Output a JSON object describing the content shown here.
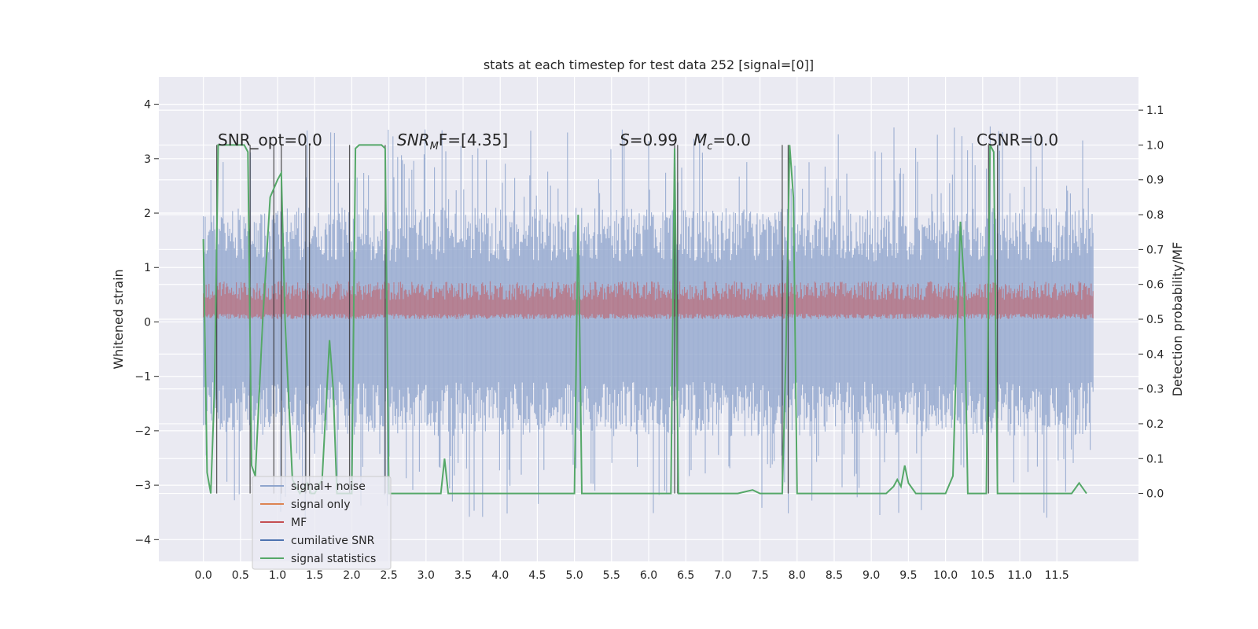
{
  "chart_data": {
    "type": "line",
    "title": "stats at each timestep for test data 252 [signal=[0]]",
    "ylabel": "Whitened strain",
    "y2label": "Detection probability/MF",
    "xlim": [
      -0.6,
      12.6
    ],
    "ylim": [
      -4.4,
      4.5
    ],
    "y2lim": [
      -0.195,
      1.195
    ],
    "xticks": [
      "0.0",
      "0.5",
      "1.0",
      "1.5",
      "2.0",
      "2.5",
      "3.0",
      "3.5",
      "4.0",
      "4.5",
      "5.0",
      "5.5",
      "6.0",
      "6.5",
      "7.0",
      "7.5",
      "8.0",
      "8.5",
      "9.0",
      "9.5",
      "10.0",
      "10.5",
      "11.0",
      "11.5"
    ],
    "yticks": [
      "4",
      "3",
      "2",
      "1",
      "0",
      "−1",
      "−2",
      "−3",
      "−4"
    ],
    "y2ticks": [
      "1.1",
      "1.0",
      "0.9",
      "0.8",
      "0.7",
      "0.6",
      "0.5",
      "0.4",
      "0.3",
      "0.2",
      "0.1",
      "0.0"
    ],
    "grid": true,
    "legend_position": "lower-left",
    "annotations": [
      "SNR_opt=0.0",
      "SNR",
      "M",
      "F=[4.35]",
      "S",
      "=0.99",
      "M",
      "c",
      "=0.0",
      "CSNR=0.0"
    ],
    "series": [
      {
        "name": "signal+ noise",
        "color": "#8fa5cd",
        "description_range": [
          -3.4,
          3.4
        ],
        "x_range": [
          0.0,
          12.0
        ]
      },
      {
        "name": "signal only",
        "color": "#dd8452",
        "values": []
      },
      {
        "name": "MF",
        "color": "#c44e52",
        "band": [
          0.05,
          0.65
        ]
      },
      {
        "name": "cumilative SNR",
        "color": "#4c72b0",
        "values": []
      },
      {
        "name": "signal statistics",
        "color": "#55a868",
        "x": [
          0.0,
          0.05,
          0.1,
          0.15,
          0.2,
          0.25,
          0.3,
          0.4,
          0.5,
          0.55,
          0.6,
          0.65,
          0.7,
          0.8,
          0.9,
          1.0,
          1.05,
          1.1,
          1.2,
          1.3,
          1.4,
          1.45,
          1.5,
          1.6,
          1.7,
          1.75,
          1.8,
          1.9,
          2.0,
          2.05,
          2.1,
          2.2,
          2.3,
          2.4,
          2.45,
          2.5,
          2.6,
          2.8,
          3.0,
          3.1,
          3.2,
          3.25,
          3.3,
          3.4,
          3.5,
          4.0,
          4.5,
          4.9,
          5.0,
          5.05,
          5.1,
          5.15,
          5.2,
          5.5,
          6.0,
          6.3,
          6.35,
          6.4,
          6.45,
          6.5,
          7.0,
          7.1,
          7.2,
          7.4,
          7.5,
          7.6,
          7.7,
          7.8,
          7.85,
          7.9,
          7.95,
          8.0,
          8.05,
          8.5,
          9.0,
          9.1,
          9.2,
          9.3,
          9.35,
          9.4,
          9.45,
          9.5,
          9.6,
          9.7,
          10.0,
          10.1,
          10.2,
          10.25,
          10.3,
          10.4,
          10.5,
          10.55,
          10.6,
          10.65,
          10.7,
          10.75,
          11.0,
          11.5,
          11.6,
          11.7,
          11.8,
          11.9
        ],
        "values": [
          0.73,
          0.06,
          0.0,
          0.3,
          1.0,
          1.0,
          1.0,
          1.0,
          1.0,
          1.0,
          0.98,
          0.08,
          0.05,
          0.5,
          0.85,
          0.9,
          0.92,
          0.5,
          0.04,
          0.0,
          0.03,
          0.0,
          0.0,
          0.04,
          0.44,
          0.3,
          0.0,
          0.0,
          0.0,
          0.99,
          1.0,
          1.0,
          1.0,
          1.0,
          0.99,
          0.0,
          0.0,
          0.0,
          0.0,
          0.0,
          0.0,
          0.1,
          0.0,
          0.0,
          0.0,
          0.0,
          0.0,
          0.0,
          0.0,
          0.8,
          0.0,
          0.0,
          0.0,
          0.0,
          0.0,
          0.0,
          0.99,
          0.0,
          0.0,
          0.0,
          0.0,
          0.0,
          0.0,
          0.01,
          0.0,
          0.0,
          0.0,
          0.0,
          0.4,
          1.0,
          0.85,
          0.0,
          0.0,
          0.0,
          0.0,
          0.0,
          0.0,
          0.02,
          0.04,
          0.02,
          0.08,
          0.03,
          0.0,
          0.0,
          0.0,
          0.05,
          0.78,
          0.6,
          0.0,
          0.0,
          0.0,
          0.0,
          1.0,
          0.98,
          0.0,
          0.0,
          0.0,
          0.0,
          0.0,
          0.0,
          0.03,
          0.0
        ]
      }
    ],
    "vlines_x": [
      0.18,
      0.63,
      0.95,
      1.05,
      1.38,
      1.43,
      1.97,
      2.45,
      6.35,
      6.39,
      7.8,
      7.88,
      10.58,
      10.7
    ]
  }
}
